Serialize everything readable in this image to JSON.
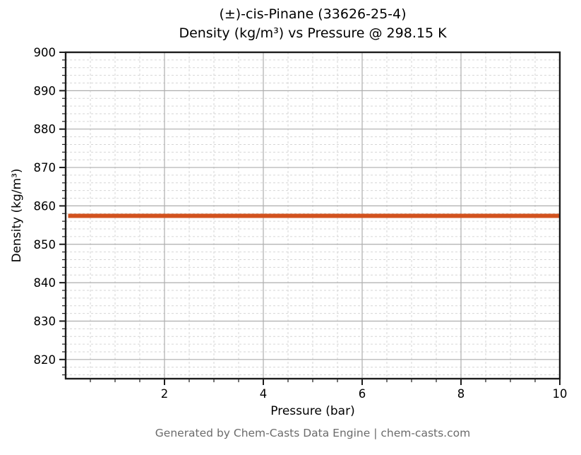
{
  "figure": {
    "title_line1": "(±)-cis-Pinane (33626-25-4)",
    "title_line2": "Density (kg/m³) vs Pressure @ 298.15 K",
    "footer": "Generated by Chem-Casts Data Engine | chem-casts.com"
  },
  "chart_data": {
    "type": "line",
    "title": "(±)-cis-Pinane (33626-25-4) — Density (kg/m³) vs Pressure @ 298.15 K",
    "xlabel": "Pressure (bar)",
    "ylabel": "Density (kg/m³)",
    "xlim": [
      0,
      10
    ],
    "ylim": [
      815,
      900
    ],
    "xticks": [
      2,
      4,
      6,
      8,
      10
    ],
    "yticks": [
      820,
      830,
      840,
      850,
      860,
      870,
      880,
      890,
      900
    ],
    "x_minor_step": 0.5,
    "y_minor_step": 2,
    "grid": "major solid, minor dashed",
    "legend_position": "none",
    "series": [
      {
        "name": "Density @ 298.15 K",
        "color": "#d2521e",
        "x": [
          0.05,
          1,
          2,
          3,
          4,
          5,
          6,
          7,
          8,
          9,
          10
        ],
        "y": [
          857.4,
          857.4,
          857.4,
          857.4,
          857.4,
          857.4,
          857.4,
          857.4,
          857.4,
          857.4,
          857.4
        ]
      }
    ]
  },
  "colors": {
    "line": "#d2521e",
    "grid_major": "#aeaeae",
    "grid_minor": "#d6d6d6",
    "spine": "#1c1c1c",
    "tick": "#1c1c1c",
    "text": "#000000",
    "footer_text": "#6b6b6b",
    "background": "#ffffff"
  }
}
